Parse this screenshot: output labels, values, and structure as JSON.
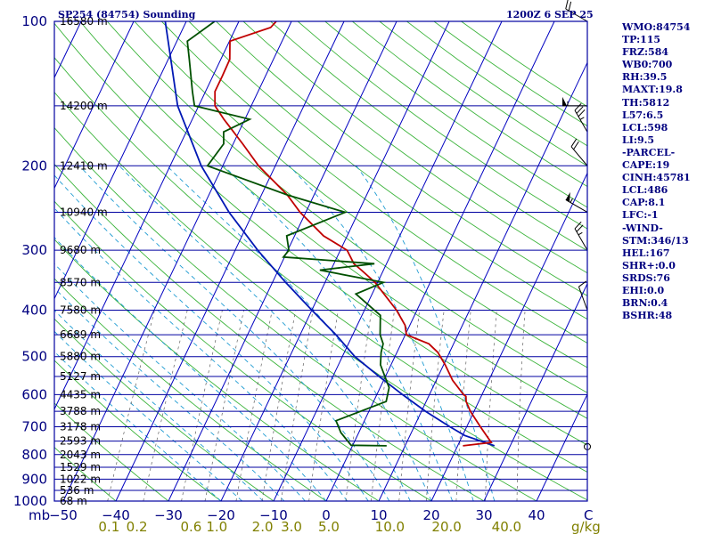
{
  "title_left": "SP254 (84754) Sounding",
  "title_right": "1200Z  6 SEP 25",
  "colors": {
    "isobar": "#0000a0",
    "isotherm": "#0000c0",
    "dry_adiabat": "#3cb43c",
    "moist_adiabat": "#1e9bd2",
    "mixing_ratio": "#606060",
    "temperature": "#c00000",
    "dewpoint": "#005000",
    "parcel": "#0018b4",
    "wind": "#000000",
    "index_text": "#000080"
  },
  "indices": [
    "WMO:84754",
    "TP:115",
    "FRZ:584",
    "WB0:700",
    "RH:39.5",
    "MAXT:19.8",
    "TH:5812",
    "L57:6.5",
    "LCL:598",
    "LI:9.5",
    "-PARCEL-",
    "CAPE:19",
    "CINH:45781",
    "LCL:486",
    "CAP:8.1",
    "LFC:-1",
    "-WIND-",
    "STM:346/13",
    "HEL:167",
    "SHR+:0.0",
    "SRDS:76",
    "EHI:0.0",
    "BRN:0.4",
    "BSHR:48"
  ],
  "chart_data": {
    "type": "skew-t",
    "pressure_axis": {
      "scale": "log",
      "range_hPa": [
        1000,
        100
      ],
      "unit_label": "mb",
      "tick_labels": [
        {
          "p": 100,
          "label": "100"
        },
        {
          "p": 200,
          "label": "200"
        },
        {
          "p": 300,
          "label": "300"
        },
        {
          "p": 400,
          "label": "400"
        },
        {
          "p": 500,
          "label": "500"
        },
        {
          "p": 600,
          "label": "600"
        },
        {
          "p": 700,
          "label": "700"
        },
        {
          "p": 800,
          "label": "800"
        },
        {
          "p": 900,
          "label": "900"
        },
        {
          "p": 1000,
          "label": "1000"
        }
      ]
    },
    "temperature_axis": {
      "unit_label": "C",
      "ticks": [
        -50,
        -40,
        -30,
        -20,
        -10,
        0,
        10,
        20,
        30,
        40
      ],
      "tick_labels": [
        "−50",
        "−40",
        "−30",
        "−20",
        "−10",
        "0",
        "10",
        "20",
        "30",
        "40"
      ]
    },
    "mixing_ratio_axis": {
      "unit_label": "g/kg",
      "ticks": [
        {
          "label": "0.1",
          "t": -41.3
        },
        {
          "label": "0.2",
          "t": -36.0
        },
        {
          "label": "0.6",
          "t": -25.7
        },
        {
          "label": "1.0",
          "t": -20.8
        },
        {
          "label": "2.0",
          "t": -12.1
        },
        {
          "label": "3.0",
          "t": -6.6
        },
        {
          "label": "5.0",
          "t": 0.5
        },
        {
          "label": "10.0",
          "t": 12.1
        },
        {
          "label": "20.0",
          "t": 22.9
        },
        {
          "label": "40.0",
          "t": 34.3
        }
      ]
    },
    "height_labels": [
      {
        "p": 100,
        "label": "16580 m"
      },
      {
        "p": 150,
        "label": "14200 m"
      },
      {
        "p": 200,
        "label": "12410 m"
      },
      {
        "p": 250,
        "label": "10940 m"
      },
      {
        "p": 300,
        "label": "9680 m"
      },
      {
        "p": 350,
        "label": "8570 m"
      },
      {
        "p": 400,
        "label": "7580 m"
      },
      {
        "p": 450,
        "label": "6689 m"
      },
      {
        "p": 500,
        "label": "5880 m"
      },
      {
        "p": 550,
        "label": "5127 m"
      },
      {
        "p": 600,
        "label": "4435 m"
      },
      {
        "p": 650,
        "label": "3788 m"
      },
      {
        "p": 700,
        "label": "3178 m"
      },
      {
        "p": 750,
        "label": "2593 m"
      },
      {
        "p": 800,
        "label": "2043 m"
      },
      {
        "p": 850,
        "label": "1529 m"
      },
      {
        "p": 900,
        "label": "1022 m"
      },
      {
        "p": 950,
        "label": "536 m"
      },
      {
        "p": 1000,
        "label": "68 m"
      }
    ],
    "temperature_profile": [
      {
        "p": 767,
        "t": 21.0
      },
      {
        "p": 755,
        "t": 26.1
      },
      {
        "p": 700,
        "t": 22.6
      },
      {
        "p": 650,
        "t": 19.3
      },
      {
        "p": 620,
        "t": 17.6
      },
      {
        "p": 605,
        "t": 17.1
      },
      {
        "p": 600,
        "t": 16.5
      },
      {
        "p": 560,
        "t": 13.1
      },
      {
        "p": 520,
        "t": 10.3
      },
      {
        "p": 490,
        "t": 7.8
      },
      {
        "p": 470,
        "t": 5.3
      },
      {
        "p": 450,
        "t": 0.2
      },
      {
        "p": 430,
        "t": -0.9
      },
      {
        "p": 400,
        "t": -3.9
      },
      {
        "p": 350,
        "t": -10.5
      },
      {
        "p": 330,
        "t": -14.2
      },
      {
        "p": 320,
        "t": -16.2
      },
      {
        "p": 300,
        "t": -18.7
      },
      {
        "p": 280,
        "t": -24.5
      },
      {
        "p": 250,
        "t": -31.1
      },
      {
        "p": 230,
        "t": -35.1
      },
      {
        "p": 200,
        "t": -43.2
      },
      {
        "p": 180,
        "t": -48.2
      },
      {
        "p": 160,
        "t": -54.0
      },
      {
        "p": 150,
        "t": -56.9
      },
      {
        "p": 140,
        "t": -58.2
      },
      {
        "p": 130,
        "t": -58.2
      },
      {
        "p": 120,
        "t": -58.3
      },
      {
        "p": 110,
        "t": -59.9
      },
      {
        "p": 103,
        "t": -53.4
      },
      {
        "p": 100,
        "t": -52.9
      }
    ],
    "dewpoint_profile": [
      {
        "p": 767,
        "t": 6.5
      },
      {
        "p": 765,
        "t": -0.3
      },
      {
        "p": 720,
        "t": -3.4
      },
      {
        "p": 680,
        "t": -5.4
      },
      {
        "p": 620,
        "t": 2.4
      },
      {
        "p": 580,
        "t": 1.7
      },
      {
        "p": 520,
        "t": -2.0
      },
      {
        "p": 490,
        "t": -3.0
      },
      {
        "p": 470,
        "t": -3.4
      },
      {
        "p": 450,
        "t": -4.8
      },
      {
        "p": 410,
        "t": -6.5
      },
      {
        "p": 370,
        "t": -13.1
      },
      {
        "p": 350,
        "t": -8.9
      },
      {
        "p": 330,
        "t": -22.1
      },
      {
        "p": 320,
        "t": -12.3
      },
      {
        "p": 310,
        "t": -30.2
      },
      {
        "p": 300,
        "t": -29.8
      },
      {
        "p": 280,
        "t": -31.5
      },
      {
        "p": 250,
        "t": -22.5
      },
      {
        "p": 230,
        "t": -35.1
      },
      {
        "p": 200,
        "t": -52.9
      },
      {
        "p": 180,
        "t": -51.8
      },
      {
        "p": 170,
        "t": -52.9
      },
      {
        "p": 160,
        "t": -49.1
      },
      {
        "p": 150,
        "t": -60.8
      },
      {
        "p": 140,
        "t": -62.5
      },
      {
        "p": 120,
        "t": -66.0
      },
      {
        "p": 110,
        "t": -68.0
      },
      {
        "p": 100,
        "t": -64.6
      }
    ],
    "parcel_profile": [
      {
        "p": 767,
        "t": 27.0
      },
      {
        "p": 730,
        "t": 20.4
      },
      {
        "p": 700,
        "t": 16.8
      },
      {
        "p": 650,
        "t": 10.8
      },
      {
        "p": 600,
        "t": 4.9
      },
      {
        "p": 550,
        "t": -1.2
      },
      {
        "p": 500,
        "t": -7.6
      },
      {
        "p": 450,
        "t": -13.2
      },
      {
        "p": 400,
        "t": -20.0
      },
      {
        "p": 350,
        "t": -27.5
      },
      {
        "p": 300,
        "t": -35.7
      },
      {
        "p": 250,
        "t": -44.6
      },
      {
        "p": 200,
        "t": -54.1
      },
      {
        "p": 150,
        "t": -64.0
      },
      {
        "p": 100,
        "t": -74.0
      }
    ],
    "wind_barbs": [
      {
        "p": 770,
        "dir": "",
        "speed_kt": 0
      },
      {
        "p": 400,
        "dir": 340,
        "speed_kt": 10
      },
      {
        "p": 300,
        "dir": 330,
        "speed_kt": 25
      },
      {
        "p": 250,
        "dir": 300,
        "speed_kt": 55
      },
      {
        "p": 200,
        "dir": 320,
        "speed_kt": 20
      },
      {
        "p": 170,
        "dir": 330,
        "speed_kt": 35
      },
      {
        "p": 150,
        "dir": 270,
        "speed_kt": 55
      },
      {
        "p": 100,
        "dir": 300,
        "speed_kt": 20
      }
    ]
  }
}
